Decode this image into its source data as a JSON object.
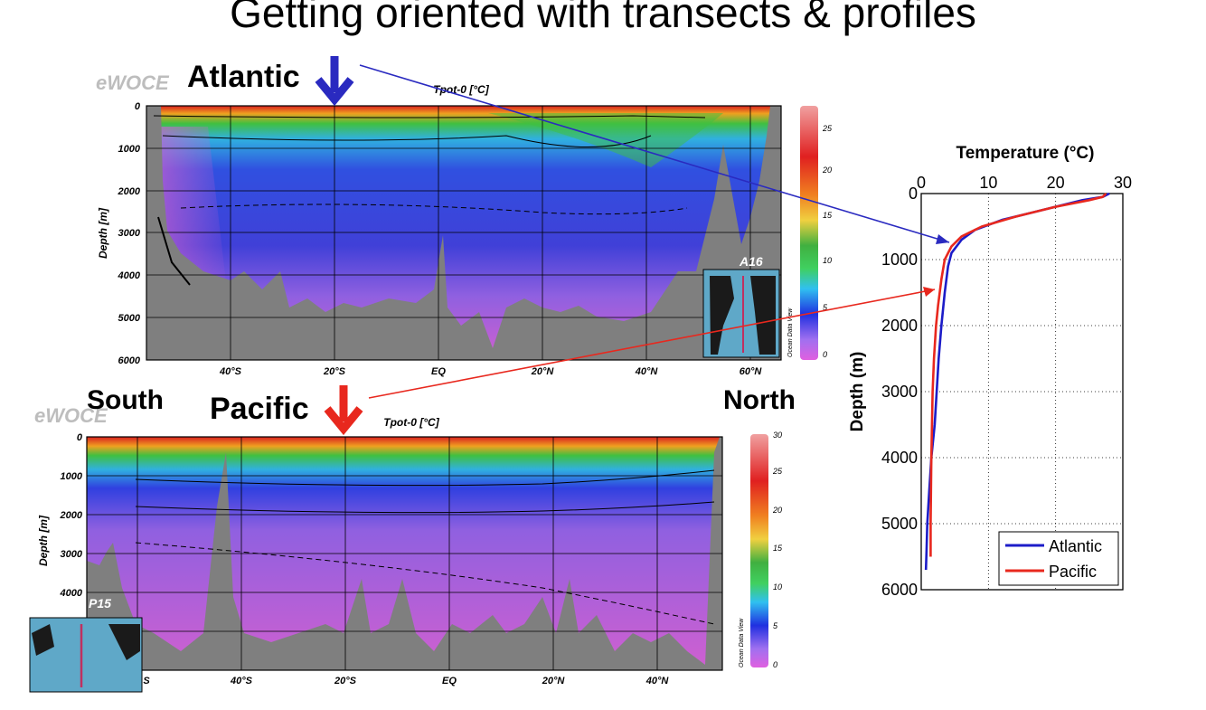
{
  "title": "Getting oriented with transects & profiles",
  "labels": {
    "atlantic": "Atlantic",
    "pacific": "Pacific",
    "south": "South",
    "north": "North",
    "ewoce": "eWOCE",
    "odv": "Ocean Data View"
  },
  "colors": {
    "atlantic": "#1c1cc8",
    "pacific": "#e8281e",
    "bathymetry": "#7f7f7f"
  },
  "chart_data": [
    {
      "type": "heatmap",
      "id": "atlantic-section",
      "title": "Tpot-0 [°C]",
      "xlabel": "",
      "ylabel": "Depth [m]",
      "xticks": [
        "40°S",
        "20°S",
        "EQ",
        "20°N",
        "40°N",
        "60°N"
      ],
      "yticks": [
        "0",
        "1000",
        "2000",
        "3000",
        "4000",
        "5000",
        "6000"
      ],
      "ylim": [
        0,
        6000
      ],
      "colorbar_ticks": [
        "0",
        "5",
        "10",
        "15",
        "20",
        "25"
      ],
      "colorbar_range": [
        0,
        28
      ],
      "inset_label": "A16",
      "grid": true
    },
    {
      "type": "heatmap",
      "id": "pacific-section",
      "title": "Tpot-0 [°C]",
      "xlabel": "",
      "ylabel": "Depth [m]",
      "xticks": [
        "S",
        "40°S",
        "20°S",
        "EQ",
        "20°N",
        "40°N"
      ],
      "yticks": [
        "0",
        "1000",
        "2000",
        "3000",
        "4000"
      ],
      "ylim": [
        0,
        6000
      ],
      "colorbar_ticks": [
        "0",
        "5",
        "10",
        "15",
        "20",
        "25",
        "30"
      ],
      "colorbar_range": [
        0,
        30
      ],
      "inset_label": "P15",
      "grid": true
    },
    {
      "type": "line",
      "id": "temperature-profile",
      "title": "Temperature (°C)",
      "xlabel": "Temperature (°C)",
      "ylabel": "Depth (m)",
      "xlim": [
        0,
        30
      ],
      "ylim": [
        0,
        6000
      ],
      "xticks": [
        "0",
        "10",
        "20",
        "30"
      ],
      "yticks": [
        "0",
        "1000",
        "2000",
        "3000",
        "4000",
        "5000",
        "6000"
      ],
      "grid": true,
      "legend": "bottom-right",
      "series": [
        {
          "name": "Atlantic",
          "color": "#1c1cc8",
          "points": [
            [
              28,
              0
            ],
            [
              27,
              50
            ],
            [
              24,
              100
            ],
            [
              18,
              250
            ],
            [
              12,
              400
            ],
            [
              8,
              550
            ],
            [
              6,
              700
            ],
            [
              4.5,
              900
            ],
            [
              4,
              1100
            ],
            [
              3.5,
              1500
            ],
            [
              3,
              2000
            ],
            [
              2.6,
              2500
            ],
            [
              2.3,
              3000
            ],
            [
              2,
              3500
            ],
            [
              1.5,
              4000
            ],
            [
              1.2,
              4500
            ],
            [
              0.9,
              5000
            ],
            [
              0.8,
              5400
            ],
            [
              0.7,
              5700
            ]
          ]
        },
        {
          "name": "Pacific",
          "color": "#e8281e",
          "points": [
            [
              27.5,
              0
            ],
            [
              27,
              50
            ],
            [
              25,
              100
            ],
            [
              20,
              200
            ],
            [
              14,
              350
            ],
            [
              9,
              500
            ],
            [
              6,
              650
            ],
            [
              4.5,
              800
            ],
            [
              3.5,
              1000
            ],
            [
              3,
              1300
            ],
            [
              2.5,
              1700
            ],
            [
              2.2,
              2000
            ],
            [
              1.9,
              2500
            ],
            [
              1.7,
              3000
            ],
            [
              1.6,
              3500
            ],
            [
              1.5,
              4000
            ],
            [
              1.45,
              4500
            ],
            [
              1.4,
              5000
            ],
            [
              1.4,
              5500
            ]
          ]
        }
      ]
    }
  ]
}
